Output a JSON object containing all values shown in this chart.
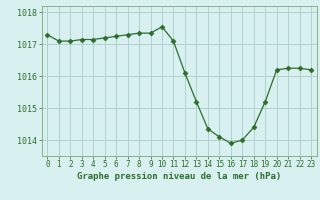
{
  "x": [
    0,
    1,
    2,
    3,
    4,
    5,
    6,
    7,
    8,
    9,
    10,
    11,
    12,
    13,
    14,
    15,
    16,
    17,
    18,
    19,
    20,
    21,
    22,
    23
  ],
  "y": [
    1017.3,
    1017.1,
    1017.1,
    1017.15,
    1017.15,
    1017.2,
    1017.25,
    1017.3,
    1017.35,
    1017.35,
    1017.55,
    1017.1,
    1016.1,
    1015.2,
    1014.35,
    1014.1,
    1013.9,
    1014.0,
    1014.4,
    1015.2,
    1016.2,
    1016.25,
    1016.25,
    1016.2
  ],
  "line_color": "#2d6e2d",
  "marker": "D",
  "marker_size": 2.5,
  "bg_color": "#d8f0f0",
  "grid_color": "#b0d0d0",
  "xlabel": "Graphe pression niveau de la mer (hPa)",
  "tick_color": "#2d6e2d",
  "ylim_bottom": 1013.5,
  "ylim_top": 1018.2,
  "yticks": [
    1014,
    1015,
    1016,
    1017,
    1018
  ],
  "xticks": [
    0,
    1,
    2,
    3,
    4,
    5,
    6,
    7,
    8,
    9,
    10,
    11,
    12,
    13,
    14,
    15,
    16,
    17,
    18,
    19,
    20,
    21,
    22,
    23
  ],
  "border_color": "#8aaf8a",
  "xlabel_fontsize": 6.5,
  "ytick_fontsize": 6.0,
  "xtick_fontsize": 5.5
}
